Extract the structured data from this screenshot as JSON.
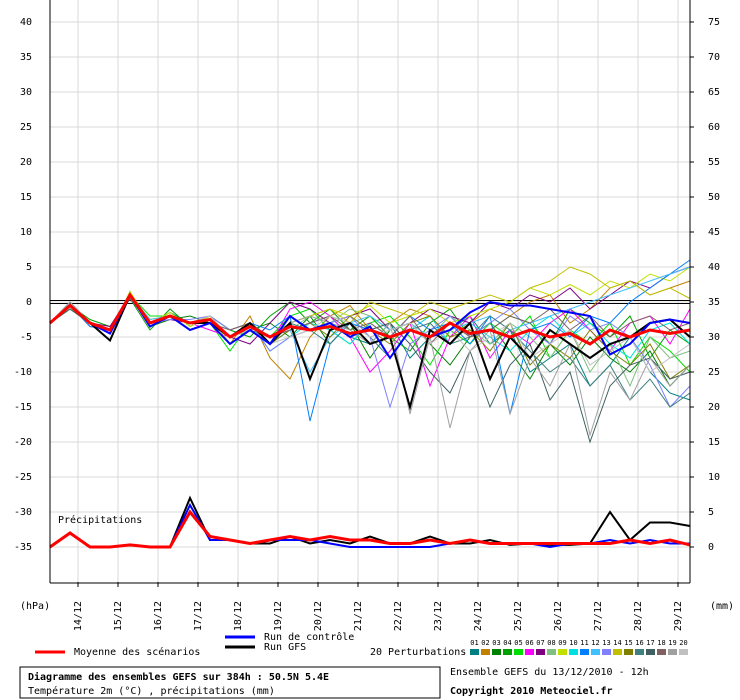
{
  "chart_data": {
    "type": "line",
    "annotation": "Précipitations",
    "ylabel": "(hPa)",
    "y2label": "(mm)",
    "x": [
      13.3,
      13.8,
      14.3,
      14.8,
      15.3,
      15.8,
      16.3,
      16.8,
      17.3,
      17.8,
      18.3,
      18.8,
      19.3,
      19.8,
      20.3,
      20.8,
      21.3,
      21.8,
      22.3,
      22.8,
      23.3,
      23.8,
      24.3,
      24.8,
      25.3,
      25.8,
      26.3,
      26.8,
      27.3,
      27.8,
      28.3,
      28.8,
      29.3
    ],
    "xlim": [
      13.3,
      29.3
    ],
    "xticks": [
      {
        "value": 14,
        "label": "14/12"
      },
      {
        "value": 15,
        "label": "15/12"
      },
      {
        "value": 16,
        "label": "16/12"
      },
      {
        "value": 17,
        "label": "17/12"
      },
      {
        "value": 18,
        "label": "18/12"
      },
      {
        "value": 19,
        "label": "19/12"
      },
      {
        "value": 20,
        "label": "20/12"
      },
      {
        "value": 21,
        "label": "21/12"
      },
      {
        "value": 22,
        "label": "22/12"
      },
      {
        "value": 23,
        "label": "23/12"
      },
      {
        "value": 24,
        "label": "24/12"
      },
      {
        "value": 25,
        "label": "25/12"
      },
      {
        "value": 26,
        "label": "26/12"
      },
      {
        "value": 27,
        "label": "27/12"
      },
      {
        "value": 28,
        "label": "28/12"
      },
      {
        "value": 29,
        "label": "29/12"
      }
    ],
    "ylim": [
      -40,
      40
    ],
    "yticks": [
      -35,
      -30,
      -25,
      -20,
      -15,
      -10,
      -5,
      0,
      5,
      10,
      15,
      20,
      25,
      30,
      35,
      40
    ],
    "y2lim": [
      -5,
      75
    ],
    "y2ticks": [
      0,
      5,
      10,
      15,
      20,
      25,
      30,
      35,
      40,
      45,
      50,
      55,
      60,
      65,
      70,
      75
    ],
    "hline": 0,
    "grid": true,
    "legend_title": "20 Perturbations",
    "series": [
      {
        "name": "01",
        "color": "#008080",
        "values": [
          -3,
          -1,
          -3,
          -4,
          0.5,
          -3,
          -1.5,
          -3,
          -2,
          -4,
          -3,
          -6,
          -4,
          -3,
          -2,
          -5,
          -6,
          -3,
          -8,
          -5,
          -4,
          -2,
          -6,
          -4,
          -10,
          -8,
          -6,
          -12,
          -9,
          -5,
          -10,
          -13,
          -14
        ]
      },
      {
        "name": "02",
        "color": "#c08000",
        "values": [
          -3,
          -0.5,
          -3.5,
          -4,
          1,
          -2.5,
          -2,
          -3,
          -3,
          -6,
          -2,
          -8,
          -11,
          -5,
          -2,
          -0.5,
          -4,
          -3,
          -1,
          -2,
          -5,
          -3,
          -1,
          -2,
          0,
          1,
          -3,
          -1,
          2,
          3,
          1,
          2,
          3
        ]
      },
      {
        "name": "03",
        "color": "#008000",
        "values": [
          -3,
          0,
          -3,
          -4.5,
          1.5,
          -3.5,
          -2.5,
          -2,
          -3,
          -5,
          -4,
          -3,
          -5,
          -2,
          -6,
          -3,
          -8,
          -4,
          -3,
          -6,
          -9,
          -5,
          -3,
          -7,
          -11,
          -6,
          -9,
          -5,
          -8,
          -10,
          -7,
          -12,
          -9
        ]
      },
      {
        "name": "04",
        "color": "#00a000",
        "values": [
          -3,
          -0.5,
          -2.5,
          -3.5,
          0.5,
          -4,
          -1,
          -3.5,
          -2,
          -4,
          -5,
          -2,
          0,
          -3,
          -1,
          -4,
          -2,
          -5,
          -7,
          -3,
          -1,
          -5,
          -4,
          -2,
          -3,
          -6,
          -1,
          -3,
          -5,
          -2,
          -8,
          -4,
          -6
        ]
      },
      {
        "name": "05",
        "color": "#00e000",
        "values": [
          -3,
          -1,
          -3,
          -4,
          1,
          -2,
          -2,
          -4,
          -3,
          -7,
          -3,
          -5,
          -2,
          -1,
          -4,
          -6,
          -3,
          -2,
          -5,
          -9,
          -4,
          -6,
          -3,
          -5,
          -2,
          -8,
          -4,
          -6,
          -3,
          -9,
          -5,
          -7,
          -10
        ]
      },
      {
        "name": "06",
        "color": "#ff00ff",
        "values": [
          -3,
          -0.5,
          -3,
          -4,
          1,
          -3,
          -2,
          -3,
          -4,
          -5,
          -3,
          -6,
          -1,
          0,
          -2,
          -5,
          -10,
          -7,
          -3,
          -12,
          -5,
          -2,
          -8,
          -4,
          -6,
          -3,
          -1,
          -4,
          -7,
          -3,
          -2,
          -6,
          -1
        ]
      },
      {
        "name": "07",
        "color": "#800080",
        "values": [
          -3,
          -1,
          -3,
          -3.5,
          1,
          -3,
          -2.5,
          -3,
          -2,
          -5,
          -6,
          -3,
          0,
          -1,
          -3,
          -2,
          -1,
          -4,
          -3,
          -1,
          -2,
          -3,
          0,
          -1,
          1,
          0,
          2,
          -1,
          1,
          3,
          2,
          4,
          5
        ]
      },
      {
        "name": "08",
        "color": "#80c080",
        "values": [
          -3,
          0,
          -3,
          -4,
          1,
          -3.5,
          -2,
          -3,
          -3,
          -4,
          -3,
          -5,
          -4,
          -2,
          -3,
          -1,
          -2,
          -4,
          -3,
          -5,
          -2,
          -4,
          -6,
          -3,
          -5,
          -8,
          -4,
          -10,
          -6,
          -12,
          -5,
          -8,
          -7
        ]
      },
      {
        "name": "09",
        "color": "#c0e000",
        "values": [
          -3,
          -0.5,
          -3,
          -4.5,
          1.5,
          -3,
          -1.5,
          -3.5,
          -2,
          -6,
          -4,
          -5,
          -3,
          -2,
          -1,
          -2,
          -0.5,
          -3,
          -2,
          -1,
          -3,
          -2,
          -1,
          0,
          2,
          1,
          2.5,
          1,
          3,
          2,
          4,
          3,
          5
        ]
      },
      {
        "name": "10",
        "color": "#00e0e0",
        "values": [
          -3,
          -1,
          -3,
          -4,
          0.5,
          -3,
          -2,
          -3,
          -2.5,
          -5,
          -3,
          -7,
          -5,
          -3,
          -4,
          -6,
          -3,
          -5,
          -4,
          -2,
          -6,
          -3,
          -5,
          -7,
          -4,
          -2,
          -5,
          -3,
          -6,
          -8,
          -4,
          -3,
          -6
        ]
      },
      {
        "name": "11",
        "color": "#0080ff",
        "values": [
          -3,
          -0.5,
          -3.5,
          -4,
          1,
          -3,
          -2,
          -3,
          -3,
          -5,
          -3,
          -4,
          -2,
          -17,
          -6,
          -3,
          -4,
          -5,
          -2,
          -4,
          -3,
          -6,
          -2,
          -16,
          -4,
          -3,
          -5,
          -2,
          -3,
          0,
          2,
          4,
          6
        ]
      },
      {
        "name": "12",
        "color": "#40c0ff",
        "values": [
          -3,
          -0.5,
          -3,
          -4,
          1,
          -2.5,
          -2,
          -3,
          -3,
          -5,
          -4,
          -6,
          -4,
          -10,
          -5,
          -3,
          -2,
          -4,
          -3,
          -5,
          -4,
          -3,
          -2,
          -4,
          -3,
          -2,
          -1,
          0,
          1,
          2,
          3,
          4,
          5
        ]
      },
      {
        "name": "13",
        "color": "#8080ff",
        "values": [
          -3,
          0,
          -3,
          -4,
          1,
          -3,
          -2.5,
          -2.5,
          -2,
          -4,
          -3,
          -7,
          -5,
          -4,
          -3,
          -2,
          -5,
          -15,
          -6,
          -4,
          -2,
          -5,
          -3,
          -1,
          -4,
          -6,
          -2,
          -4,
          -3,
          -5,
          -9,
          -15,
          -12
        ]
      },
      {
        "name": "14",
        "color": "#c0c000",
        "values": [
          -3,
          -0.5,
          -3,
          -4,
          1,
          -3.5,
          -2,
          -3,
          -3,
          -5,
          -3,
          -6,
          -3,
          -2,
          -1,
          -3,
          0,
          -1,
          -2,
          0,
          -1,
          0,
          1,
          0,
          2,
          3,
          5,
          4,
          2,
          3,
          1,
          2,
          0.5
        ]
      },
      {
        "name": "15",
        "color": "#808000",
        "values": [
          -3,
          -1,
          -3,
          -4,
          1,
          -3,
          -2,
          -3,
          -2.5,
          -5,
          -3,
          -6,
          -4,
          -3,
          -5,
          -2,
          -4,
          -6,
          -3,
          -2,
          -5,
          -4,
          -7,
          -3,
          -9,
          -6,
          -8,
          -4,
          -7,
          -9,
          -6,
          -11,
          -9
        ]
      },
      {
        "name": "16",
        "color": "#408080",
        "values": [
          -3,
          -0.5,
          -3,
          -4,
          1,
          -3,
          -2,
          -3,
          -3,
          -5,
          -4,
          -5,
          -3,
          -4,
          -6,
          -3,
          -5,
          -8,
          -4,
          -3,
          -6,
          -5,
          -2,
          -4,
          -7,
          -10,
          -8,
          -12,
          -9,
          -14,
          -11,
          -15,
          -13
        ]
      },
      {
        "name": "17",
        "color": "#406060",
        "values": [
          -3,
          -1,
          -3,
          -4,
          1,
          -3,
          -2,
          -3,
          -3,
          -5,
          -3,
          -6,
          -2,
          -4,
          -3,
          -5,
          -4,
          -3,
          -6,
          -10,
          -13,
          -7,
          -15,
          -9,
          -6,
          -14,
          -10,
          -20,
          -12,
          -9,
          -8,
          -11,
          -10
        ]
      },
      {
        "name": "18",
        "color": "#806060",
        "values": [
          -3,
          -0.5,
          -3,
          -4,
          0.5,
          -3,
          -2,
          -3,
          -3,
          -4,
          -3,
          -5,
          -4,
          -3,
          -2,
          -4,
          -3,
          -5,
          -2,
          -6,
          -3,
          -5,
          -4,
          -2,
          -3,
          -1,
          -4,
          -2,
          -5,
          -3,
          -2,
          -4,
          -3
        ]
      },
      {
        "name": "19",
        "color": "#a0a0a0",
        "values": [
          -3,
          0,
          -3,
          -4,
          1,
          -3,
          -2,
          -3,
          -3,
          -5,
          -3,
          -6,
          -3,
          -2,
          -3,
          -4,
          -6,
          -3,
          -16,
          -5,
          -18,
          -7,
          -4,
          -16,
          -8,
          -12,
          -6,
          -19,
          -10,
          -14,
          -8,
          -12,
          -9
        ]
      },
      {
        "name": "20",
        "color": "#c0c0c0",
        "values": [
          -3,
          -0.5,
          -3,
          -4,
          1,
          -3,
          -2,
          -3,
          -2,
          -5,
          -4,
          -6,
          -5,
          -4,
          -2,
          -3,
          -5,
          -4,
          -3,
          -6,
          -4,
          -7,
          -5,
          -3,
          -8,
          -6,
          -4,
          -9,
          -7,
          -5,
          -10,
          -8,
          -6
        ]
      },
      {
        "name": "Run GFS",
        "color": "#000000",
        "values": [
          -3,
          -0.5,
          -3,
          -5.5,
          1,
          -3,
          -2,
          -3,
          -3,
          -5,
          -3,
          -6,
          -3,
          -11,
          -4,
          -3,
          -6,
          -5,
          -15,
          -4,
          -6,
          -3,
          -11,
          -5,
          -8,
          -4,
          -6,
          -8,
          -6,
          -5,
          -3,
          -2.5,
          -5
        ],
        "precip_values": [
          0,
          2,
          0,
          0,
          0.3,
          0,
          0,
          7,
          1,
          1,
          0.5,
          0.5,
          1.5,
          0.5,
          1,
          0.5,
          1.5,
          0.5,
          0.5,
          1.5,
          0.5,
          0.5,
          1,
          0.3,
          0.5,
          0.3,
          0.3,
          0.5,
          5,
          1,
          3.5,
          3.5,
          3
        ]
      },
      {
        "name": "Run de contrôle",
        "color": "#0000ff",
        "values": [
          -3,
          -0.5,
          -3,
          -4.5,
          1,
          -3.5,
          -2,
          -4,
          -3,
          -6,
          -4,
          -6,
          -2,
          -4,
          -3,
          -5,
          -3.5,
          -8,
          -4,
          -5,
          -4,
          -1.5,
          0,
          -0.5,
          -0.5,
          -1,
          -1.5,
          -2,
          -7.5,
          -6,
          -3,
          -2.5,
          -3
        ],
        "precip_values": [
          0,
          2,
          0,
          0,
          0.3,
          0,
          0,
          6,
          1,
          1,
          0.5,
          1,
          1,
          1,
          0.5,
          0,
          0,
          0,
          0,
          0,
          0.5,
          1,
          0.5,
          0.5,
          0.5,
          0,
          0.5,
          0.5,
          1,
          0.5,
          1,
          0.5,
          0.5
        ]
      },
      {
        "name": "Moyenne des scénarios",
        "color": "#ff0000",
        "values": [
          -3,
          -0.5,
          -3,
          -4,
          1,
          -3,
          -2,
          -3,
          -2.5,
          -5,
          -3.5,
          -5,
          -3.5,
          -4,
          -3.5,
          -4.5,
          -4,
          -5,
          -4,
          -5,
          -3,
          -4.5,
          -4,
          -5,
          -4,
          -5,
          -4.5,
          -6,
          -4,
          -5,
          -4,
          -4.5,
          -4
        ],
        "precip_values": [
          0,
          2,
          0,
          0,
          0.3,
          0,
          0,
          5,
          1.5,
          1,
          0.5,
          1,
          1.5,
          1,
          1.5,
          1,
          1,
          0.5,
          0.5,
          1,
          0.5,
          1,
          0.5,
          0.5,
          0.5,
          0.5,
          0.5,
          0.5,
          0.5,
          1,
          0.5,
          1,
          0.3
        ]
      }
    ],
    "footer": {
      "title": "Diagramme des ensembles GEFS sur 384h : 50.5N 5.4E",
      "subtitle": "Température 2m (°C) , précipitations (mm)",
      "run": "Ensemble GEFS du 13/12/2010 - 12h",
      "copyright": "Copyright 2010 Meteociel.fr"
    }
  }
}
